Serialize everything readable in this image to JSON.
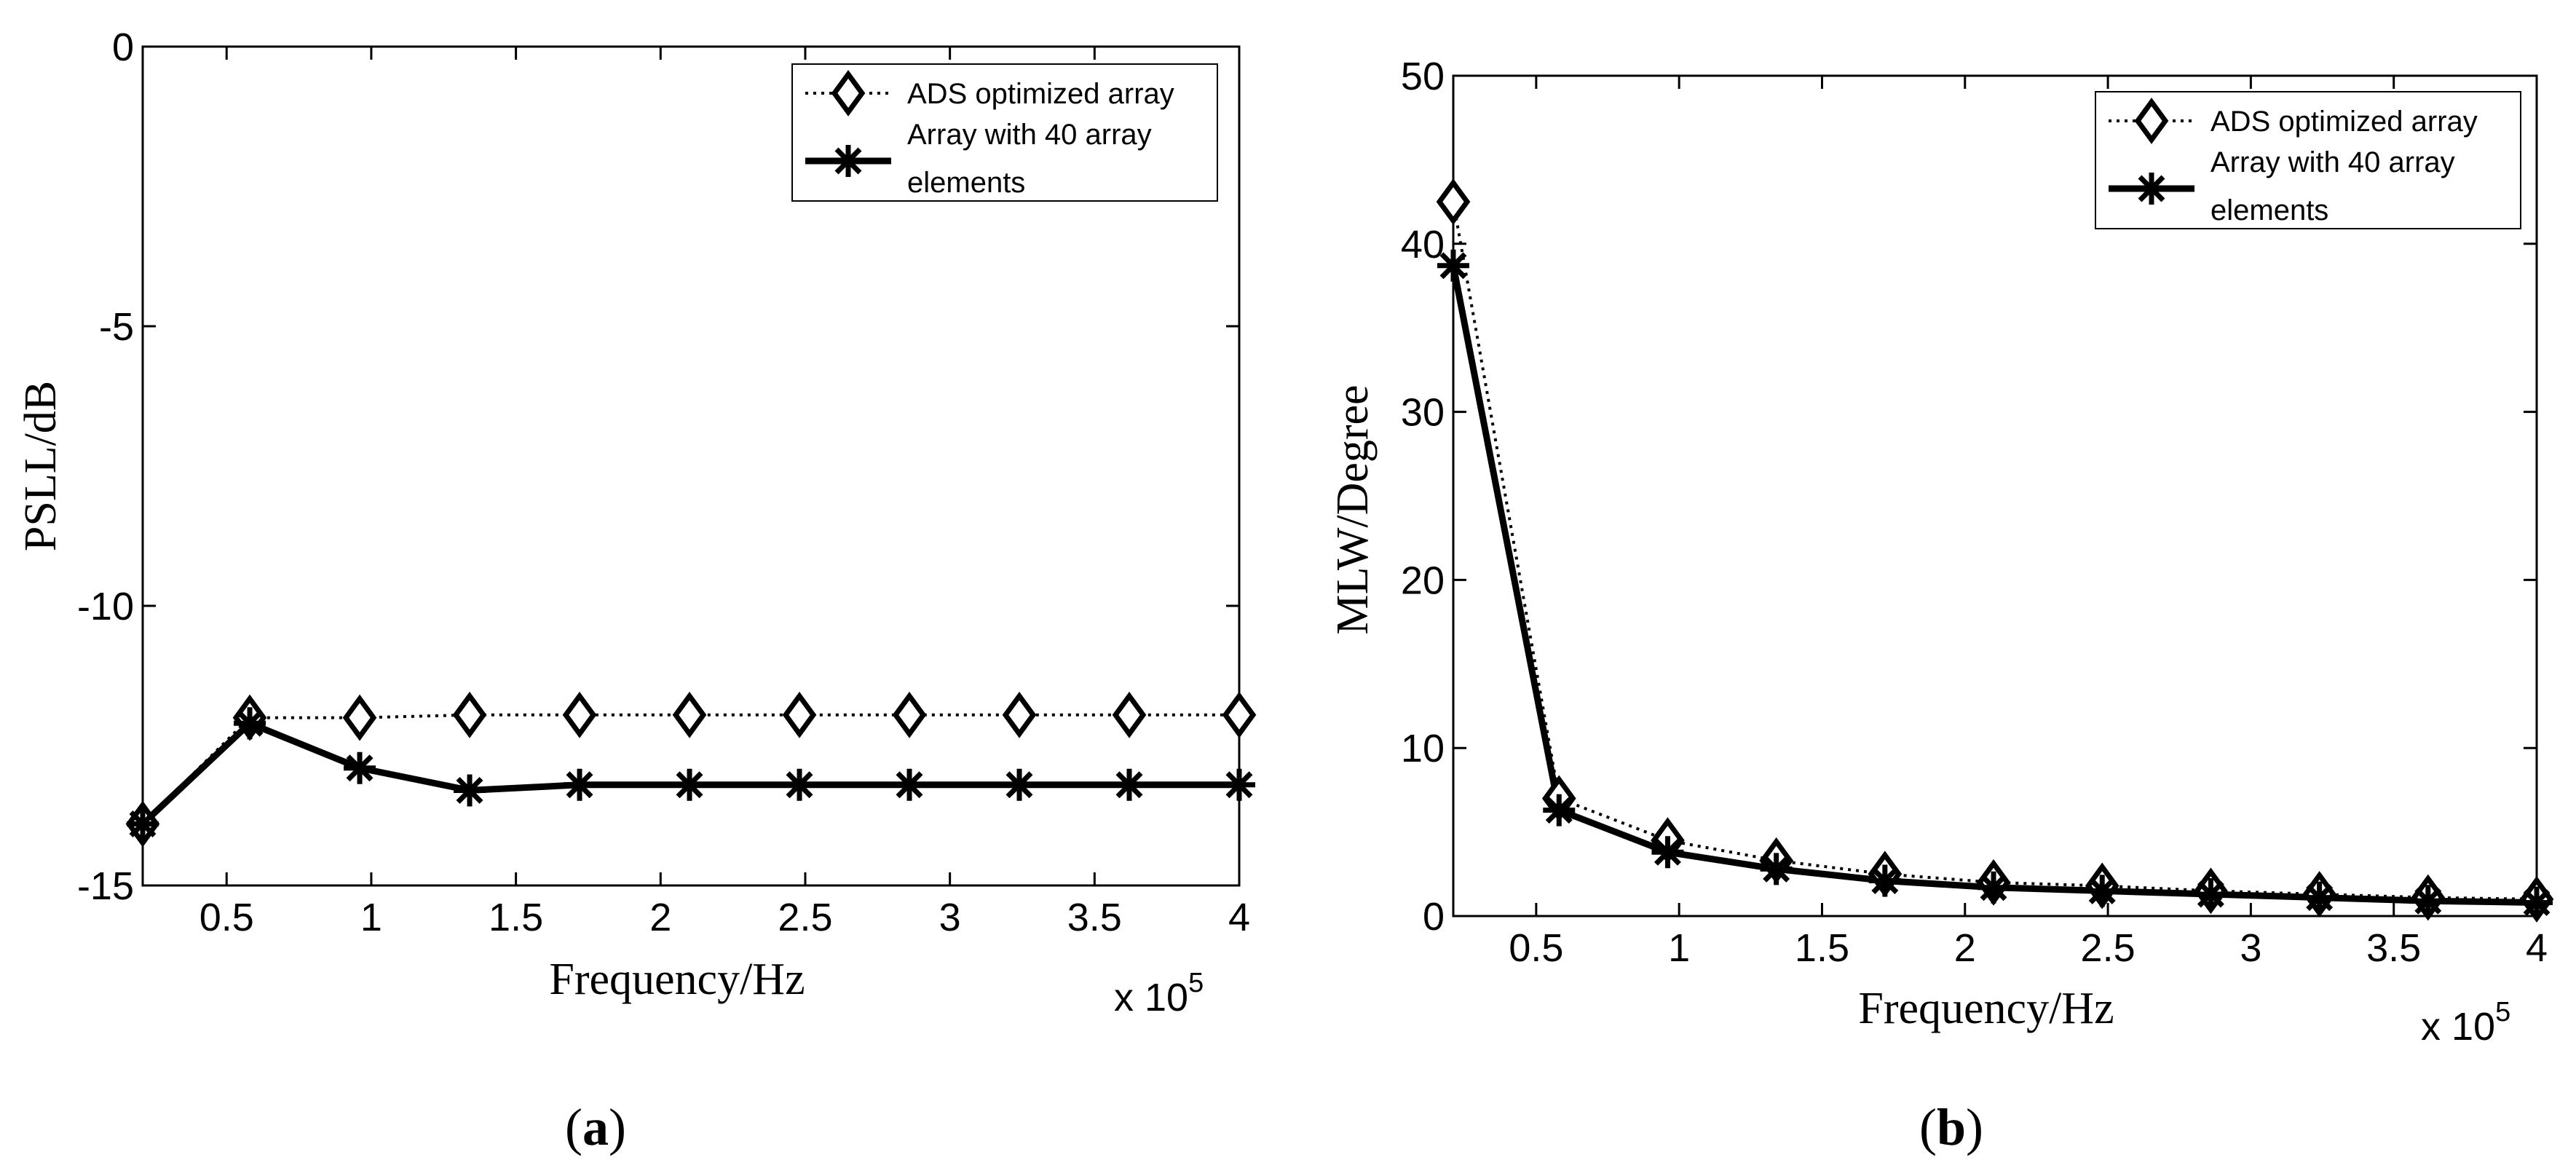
{
  "chart_data": [
    {
      "type": "line",
      "panel_label": "a",
      "xlabel": "Frequency/Hz",
      "ylabel": "PSLL/dB",
      "x_multiplier": {
        "base": "x 10",
        "exponent": "5"
      },
      "xlim": [
        0.21,
        4.0
      ],
      "ylim": [
        -15,
        0
      ],
      "xticks": [
        0.5,
        1,
        1.5,
        2,
        2.5,
        3,
        3.5,
        4
      ],
      "xtick_labels": [
        "0.5",
        "1",
        "1.5",
        "2",
        "2.5",
        "3",
        "3.5",
        "4"
      ],
      "yticks": [
        0,
        -5,
        -10,
        -15
      ],
      "ytick_labels": [
        "0",
        "-5",
        "-10",
        "-15"
      ],
      "legend_position": "top-right",
      "x": [
        0.21,
        0.58,
        0.96,
        1.34,
        1.72,
        2.1,
        2.48,
        2.86,
        3.24,
        3.62,
        4.0
      ],
      "series": [
        {
          "name": "ADS optimized array",
          "legend_lines": [
            "ADS optimized array"
          ],
          "marker": "diamond",
          "linestyle": "dotted",
          "values": [
            -13.9,
            -12.0,
            -12.0,
            -11.95,
            -11.95,
            -11.95,
            -11.95,
            -11.95,
            -11.95,
            -11.95,
            -11.95
          ]
        },
        {
          "name": "Array with 40 array elements",
          "legend_lines": [
            "Array with 40 array",
            "elements"
          ],
          "marker": "asterisk",
          "linestyle": "solid",
          "values": [
            -13.9,
            -12.1,
            -12.9,
            -13.3,
            -13.2,
            -13.2,
            -13.2,
            -13.2,
            -13.2,
            -13.2,
            -13.2
          ]
        }
      ]
    },
    {
      "type": "line",
      "panel_label": "b",
      "xlabel": "Frequency/Hz",
      "ylabel": "MLW/Degree",
      "x_multiplier": {
        "base": "x 10",
        "exponent": "5"
      },
      "xlim": [
        0.21,
        4.0
      ],
      "ylim": [
        0,
        50
      ],
      "xticks": [
        0.5,
        1,
        1.5,
        2,
        2.5,
        3,
        3.5,
        4
      ],
      "xtick_labels": [
        "0.5",
        "1",
        "1.5",
        "2",
        "2.5",
        "3",
        "3.5",
        "4"
      ],
      "yticks": [
        0,
        10,
        20,
        30,
        40,
        50
      ],
      "ytick_labels": [
        "0",
        "10",
        "20",
        "30",
        "40",
        "50"
      ],
      "legend_position": "top-right",
      "x": [
        0.21,
        0.58,
        0.96,
        1.34,
        1.72,
        2.1,
        2.48,
        2.86,
        3.24,
        3.62,
        4.0
      ],
      "series": [
        {
          "name": "ADS optimized array",
          "legend_lines": [
            "ADS optimized array"
          ],
          "marker": "diamond",
          "linestyle": "dotted",
          "values": [
            42.5,
            7.0,
            4.5,
            3.3,
            2.5,
            2.0,
            1.8,
            1.5,
            1.3,
            1.1,
            1.0
          ]
        },
        {
          "name": "Array with 40 array elements",
          "legend_lines": [
            "Array with 40 array",
            "elements"
          ],
          "marker": "asterisk",
          "linestyle": "solid",
          "values": [
            38.7,
            6.3,
            3.8,
            2.8,
            2.1,
            1.7,
            1.5,
            1.3,
            1.1,
            0.9,
            0.8
          ]
        }
      ]
    }
  ]
}
